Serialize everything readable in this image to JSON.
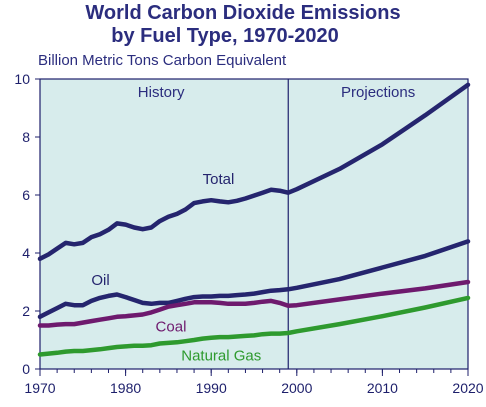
{
  "chart_data": {
    "type": "line",
    "title": "World Carbon Dioxide Emissions",
    "title_line2": "by Fuel Type, 1970-2020",
    "ylabel": "Billion Metric Tons Carbon Equivalent",
    "xlim": [
      1970,
      2020
    ],
    "ylim": [
      0,
      10
    ],
    "x_ticks": [
      "1970",
      "1980",
      "1990",
      "2000",
      "2010",
      "2020"
    ],
    "y_ticks": [
      "0",
      "2",
      "4",
      "6",
      "8",
      "10"
    ],
    "regions": [
      {
        "label": "History",
        "from": 1970,
        "to": 1999
      },
      {
        "label": "Projections",
        "from": 1999,
        "to": 2020
      }
    ],
    "divider_year": 1999,
    "series": [
      {
        "name": "Total",
        "color": "#25256e",
        "points": [
          [
            1970,
            3.8
          ],
          [
            1971,
            3.95
          ],
          [
            1972,
            4.15
          ],
          [
            1973,
            4.35
          ],
          [
            1974,
            4.3
          ],
          [
            1975,
            4.35
          ],
          [
            1976,
            4.55
          ],
          [
            1977,
            4.65
          ],
          [
            1978,
            4.8
          ],
          [
            1979,
            5.02
          ],
          [
            1980,
            4.98
          ],
          [
            1981,
            4.88
          ],
          [
            1982,
            4.82
          ],
          [
            1983,
            4.88
          ],
          [
            1984,
            5.1
          ],
          [
            1985,
            5.25
          ],
          [
            1986,
            5.35
          ],
          [
            1987,
            5.5
          ],
          [
            1988,
            5.72
          ],
          [
            1989,
            5.78
          ],
          [
            1990,
            5.82
          ],
          [
            1991,
            5.78
          ],
          [
            1992,
            5.75
          ],
          [
            1993,
            5.8
          ],
          [
            1994,
            5.88
          ],
          [
            1995,
            5.98
          ],
          [
            1996,
            6.08
          ],
          [
            1997,
            6.18
          ],
          [
            1998,
            6.15
          ],
          [
            1999,
            6.08
          ],
          [
            2000,
            6.2
          ],
          [
            2005,
            6.9
          ],
          [
            2010,
            7.75
          ],
          [
            2015,
            8.75
          ],
          [
            2020,
            9.8
          ]
        ]
      },
      {
        "name": "Oil",
        "color": "#25256e",
        "points": [
          [
            1970,
            1.8
          ],
          [
            1971,
            1.95
          ],
          [
            1972,
            2.1
          ],
          [
            1973,
            2.25
          ],
          [
            1974,
            2.2
          ],
          [
            1975,
            2.2
          ],
          [
            1976,
            2.35
          ],
          [
            1977,
            2.45
          ],
          [
            1978,
            2.52
          ],
          [
            1979,
            2.57
          ],
          [
            1980,
            2.48
          ],
          [
            1981,
            2.38
          ],
          [
            1982,
            2.28
          ],
          [
            1983,
            2.25
          ],
          [
            1984,
            2.28
          ],
          [
            1985,
            2.28
          ],
          [
            1986,
            2.35
          ],
          [
            1987,
            2.42
          ],
          [
            1988,
            2.48
          ],
          [
            1989,
            2.5
          ],
          [
            1990,
            2.5
          ],
          [
            1991,
            2.52
          ],
          [
            1992,
            2.52
          ],
          [
            1993,
            2.55
          ],
          [
            1994,
            2.57
          ],
          [
            1995,
            2.6
          ],
          [
            1996,
            2.65
          ],
          [
            1997,
            2.7
          ],
          [
            1998,
            2.72
          ],
          [
            1999,
            2.75
          ],
          [
            2000,
            2.8
          ],
          [
            2005,
            3.1
          ],
          [
            2010,
            3.5
          ],
          [
            2015,
            3.9
          ],
          [
            2020,
            4.4
          ]
        ]
      },
      {
        "name": "Coal",
        "color": "#6e1a6e",
        "points": [
          [
            1970,
            1.5
          ],
          [
            1971,
            1.5
          ],
          [
            1972,
            1.53
          ],
          [
            1973,
            1.55
          ],
          [
            1974,
            1.55
          ],
          [
            1975,
            1.6
          ],
          [
            1976,
            1.65
          ],
          [
            1977,
            1.7
          ],
          [
            1978,
            1.75
          ],
          [
            1979,
            1.8
          ],
          [
            1980,
            1.82
          ],
          [
            1981,
            1.85
          ],
          [
            1982,
            1.88
          ],
          [
            1983,
            1.95
          ],
          [
            1984,
            2.05
          ],
          [
            1985,
            2.15
          ],
          [
            1986,
            2.2
          ],
          [
            1987,
            2.25
          ],
          [
            1988,
            2.3
          ],
          [
            1989,
            2.3
          ],
          [
            1990,
            2.3
          ],
          [
            1991,
            2.28
          ],
          [
            1992,
            2.25
          ],
          [
            1993,
            2.25
          ],
          [
            1994,
            2.25
          ],
          [
            1995,
            2.28
          ],
          [
            1996,
            2.32
          ],
          [
            1997,
            2.35
          ],
          [
            1998,
            2.28
          ],
          [
            1999,
            2.18
          ],
          [
            2000,
            2.2
          ],
          [
            2005,
            2.4
          ],
          [
            2010,
            2.6
          ],
          [
            2015,
            2.78
          ],
          [
            2020,
            3.0
          ]
        ]
      },
      {
        "name": "Natural Gas",
        "color": "#2e9a2e",
        "points": [
          [
            1970,
            0.5
          ],
          [
            1971,
            0.53
          ],
          [
            1972,
            0.56
          ],
          [
            1973,
            0.6
          ],
          [
            1974,
            0.62
          ],
          [
            1975,
            0.62
          ],
          [
            1976,
            0.65
          ],
          [
            1977,
            0.68
          ],
          [
            1978,
            0.72
          ],
          [
            1979,
            0.76
          ],
          [
            1980,
            0.78
          ],
          [
            1981,
            0.8
          ],
          [
            1982,
            0.8
          ],
          [
            1983,
            0.82
          ],
          [
            1984,
            0.88
          ],
          [
            1985,
            0.9
          ],
          [
            1986,
            0.92
          ],
          [
            1987,
            0.96
          ],
          [
            1988,
            1.0
          ],
          [
            1989,
            1.05
          ],
          [
            1990,
            1.08
          ],
          [
            1991,
            1.1
          ],
          [
            1992,
            1.1
          ],
          [
            1993,
            1.12
          ],
          [
            1994,
            1.14
          ],
          [
            1995,
            1.16
          ],
          [
            1996,
            1.2
          ],
          [
            1997,
            1.22
          ],
          [
            1998,
            1.22
          ],
          [
            1999,
            1.24
          ],
          [
            2000,
            1.3
          ],
          [
            2005,
            1.55
          ],
          [
            2010,
            1.82
          ],
          [
            2015,
            2.12
          ],
          [
            2020,
            2.45
          ]
        ]
      }
    ],
    "colors": {
      "background_history": "#d7ecec",
      "background_projection": "#d7ecec",
      "axis": "#1d1f6b",
      "title": "#2b2d7e"
    }
  }
}
